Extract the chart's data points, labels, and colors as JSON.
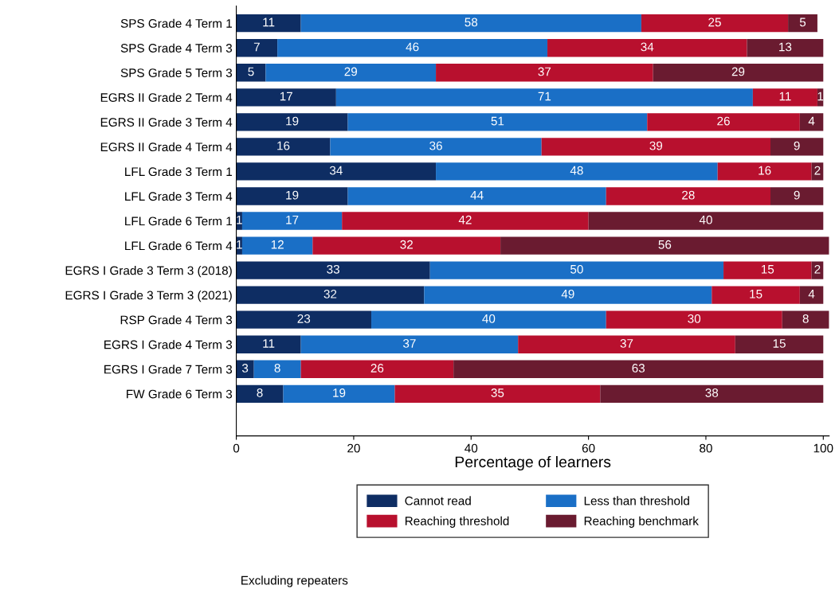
{
  "chart_data": {
    "type": "bar",
    "orientation": "horizontal",
    "stacked": true,
    "data_labels": true,
    "grid": false,
    "legend": "bottom",
    "xlabel": "Percentage of learners",
    "xlim": [
      0,
      101
    ],
    "xticks": [
      0,
      20,
      40,
      60,
      80,
      100
    ],
    "annotations": [
      "Excluding repeaters"
    ],
    "categories": [
      "SPS Grade 4 Term 1",
      "SPS Grade 4 Term 3",
      "SPS Grade 5 Term 3",
      "EGRS II Grade 2 Term 4",
      "EGRS II Grade 3 Term 4",
      "EGRS II Grade 4 Term 4",
      "LFL Grade 3 Term 1",
      "LFL Grade 3 Term 4",
      "LFL Grade 6 Term 1",
      "LFL Grade 6 Term 4",
      "EGRS I Grade 3 Term 3 (2018)",
      "EGRS I Grade 3 Term 3 (2021)",
      "RSP Grade 4 Term 3",
      "EGRS I Grade 4 Term 3",
      "EGRS I Grade 7 Term 3",
      "FW Grade 6 Term 3"
    ],
    "series": [
      {
        "name": "Cannot read",
        "color": "#0e2d63",
        "values": [
          11,
          7,
          5,
          17,
          19,
          16,
          34,
          19,
          1,
          1,
          33,
          32,
          23,
          11,
          3,
          8
        ]
      },
      {
        "name": "Less than threshold",
        "color": "#1a6fc6",
        "values": [
          58,
          46,
          29,
          71,
          51,
          36,
          48,
          44,
          17,
          12,
          50,
          49,
          40,
          37,
          8,
          19
        ]
      },
      {
        "name": "Reaching threshold",
        "color": "#b8102e",
        "values": [
          25,
          34,
          37,
          11,
          26,
          39,
          16,
          28,
          42,
          32,
          15,
          15,
          30,
          37,
          26,
          35
        ]
      },
      {
        "name": "Reaching benchmark",
        "color": "#6a1b30",
        "values": [
          5,
          13,
          29,
          1,
          4,
          9,
          2,
          9,
          40,
          56,
          2,
          4,
          8,
          15,
          63,
          38
        ]
      }
    ]
  }
}
